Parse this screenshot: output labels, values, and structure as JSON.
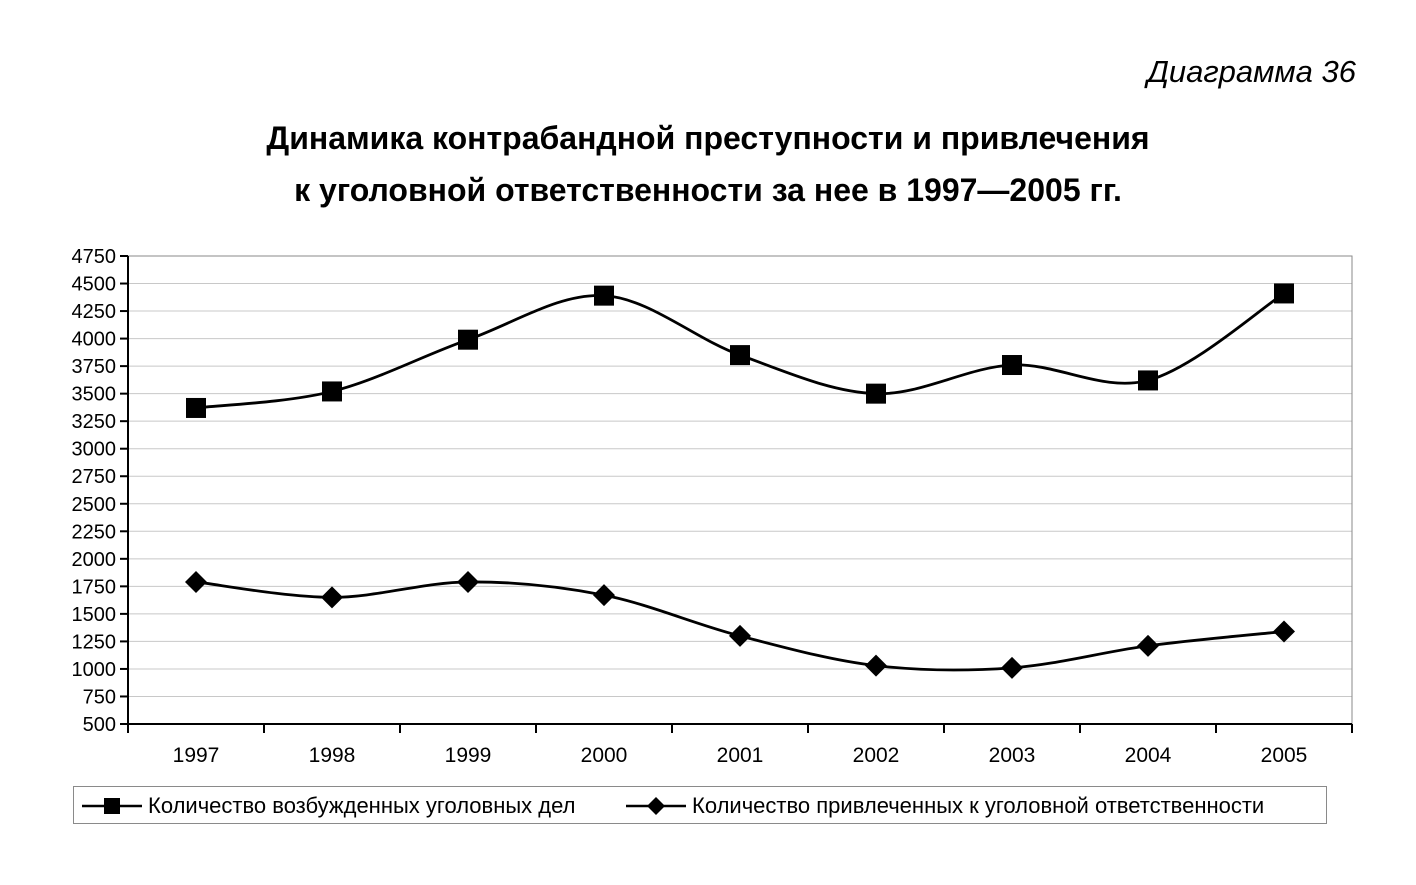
{
  "figure_label": "Диаграмма 36",
  "chart_data": {
    "type": "line",
    "title": [
      "Динамика контрабандной преступности и привлечения",
      "к уголовной ответственности за нее в 1997—2005 гг."
    ],
    "xlabel": "",
    "ylabel": "",
    "categories": [
      "1997",
      "1998",
      "1999",
      "2000",
      "2001",
      "2002",
      "2003",
      "2004",
      "2005"
    ],
    "ylim": [
      500,
      4750
    ],
    "yticks": [
      500,
      750,
      1000,
      1250,
      1500,
      1750,
      2000,
      2250,
      2500,
      2750,
      3000,
      3250,
      3500,
      3750,
      4000,
      4250,
      4500,
      4750
    ],
    "grid": "horizontal",
    "legend_position": "bottom",
    "smoothed": true,
    "series": [
      {
        "name": "Количество возбужденных уголовных дел",
        "marker": "square",
        "values": [
          3370,
          3520,
          3990,
          4390,
          3850,
          3500,
          3760,
          3620,
          4410
        ]
      },
      {
        "name": "Количество привлеченных к уголовной ответственности",
        "marker": "diamond",
        "values": [
          1790,
          1650,
          1790,
          1670,
          1300,
          1030,
          1010,
          1210,
          1340
        ]
      }
    ],
    "colors": {
      "line": "#000000",
      "grid": "#c8c8c8",
      "frame": "#8a8a8a"
    }
  }
}
